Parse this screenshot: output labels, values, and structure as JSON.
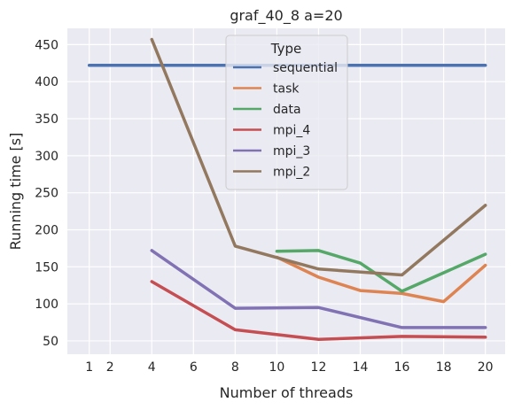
{
  "chart_data": {
    "type": "line",
    "title": "graf_40_8 a=20",
    "xlabel": "Number of threads",
    "ylabel": "Running time [s]",
    "xlim": [
      -0.05,
      20.95
    ],
    "ylim": [
      32,
      472
    ],
    "xticks": [
      1,
      2,
      4,
      6,
      8,
      10,
      12,
      14,
      16,
      18,
      20
    ],
    "yticks": [
      50,
      100,
      150,
      200,
      250,
      300,
      350,
      400,
      450
    ],
    "grid": true,
    "legend": {
      "title": "Type",
      "placement": "top-center"
    },
    "series": [
      {
        "name": "sequential",
        "color": "#4c72b0",
        "x": [
          1,
          20
        ],
        "y": [
          422,
          422
        ]
      },
      {
        "name": "task",
        "color": "#dd8452",
        "x": [
          10,
          12,
          14,
          16,
          18,
          20
        ],
        "y": [
          163,
          136,
          118,
          114,
          103,
          152
        ]
      },
      {
        "name": "data",
        "color": "#55a868",
        "x": [
          10,
          12,
          14,
          16,
          20
        ],
        "y": [
          171,
          172,
          155,
          117,
          167
        ]
      },
      {
        "name": "mpi_4",
        "color": "#c44e52",
        "x": [
          4,
          8,
          12,
          16,
          20
        ],
        "y": [
          130,
          65,
          52,
          56,
          55
        ]
      },
      {
        "name": "mpi_3",
        "color": "#8172b3",
        "x": [
          4,
          8,
          12,
          16,
          20
        ],
        "y": [
          172,
          94,
          95,
          68,
          68
        ]
      },
      {
        "name": "mpi_2",
        "color": "#937860",
        "x": [
          4,
          8,
          12,
          16,
          20
        ],
        "y": [
          457,
          178,
          147,
          139,
          233
        ]
      }
    ]
  }
}
